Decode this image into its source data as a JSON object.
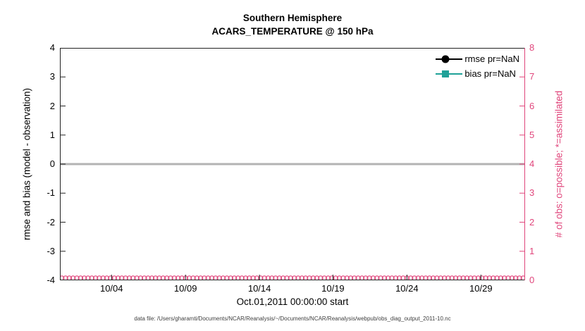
{
  "figure": {
    "title": "Southern Hemisphere",
    "subtitle": "ACARS_TEMPERATURE @ 150 hPa",
    "footer": "data file: /Users/gharamti/Documents/NCAR/Reanalysis/~/Documents/NCAR/Reanalysis/webpub/obs_diag_output_2011-10.nc"
  },
  "chart_data": {
    "type": "line",
    "title": "Southern Hemisphere",
    "subtitle": "ACARS_TEMPERATURE @ 150 hPa",
    "xlabel": "Oct.01,2011 00:00:00 start",
    "x_tick_labels": [
      "10/04",
      "10/09",
      "10/14",
      "10/19",
      "10/24",
      "10/29"
    ],
    "x_tick_positions": [
      0.111,
      0.27,
      0.429,
      0.587,
      0.746,
      0.905
    ],
    "left_axis": {
      "label": "rmse and bias (model - observation)",
      "lim": [
        -4,
        4
      ],
      "ticks": [
        -4,
        -3,
        -2,
        -1,
        0,
        1,
        2,
        3,
        4
      ]
    },
    "right_axis": {
      "label": "# of obs: o=possible; *=assimilated",
      "lim": [
        0,
        8
      ],
      "ticks": [
        0,
        1,
        2,
        3,
        4,
        5,
        6,
        7,
        8
      ],
      "color": "#e0457b"
    },
    "zero_line": {
      "value": 0,
      "color": "#b3b3b3"
    },
    "series": [
      {
        "name": "rmse pr=NaN",
        "color": "#000000",
        "marker": "filled-circle",
        "axis": "left",
        "values": [],
        "note": "rmse is NaN - no curve drawn"
      },
      {
        "name": "bias pr=NaN",
        "color": "#1fa198",
        "marker": "filled-square",
        "axis": "left",
        "values": [],
        "note": "bias is NaN - no curve drawn"
      },
      {
        "name": "obs-possible",
        "color": "#e0457b",
        "marker": "open-circle",
        "axis": "right",
        "value": 0,
        "count": 124,
        "note": "row of open circles at right-axis value 0 spanning full x range"
      }
    ],
    "legend_position": "top-right",
    "grid": false
  }
}
